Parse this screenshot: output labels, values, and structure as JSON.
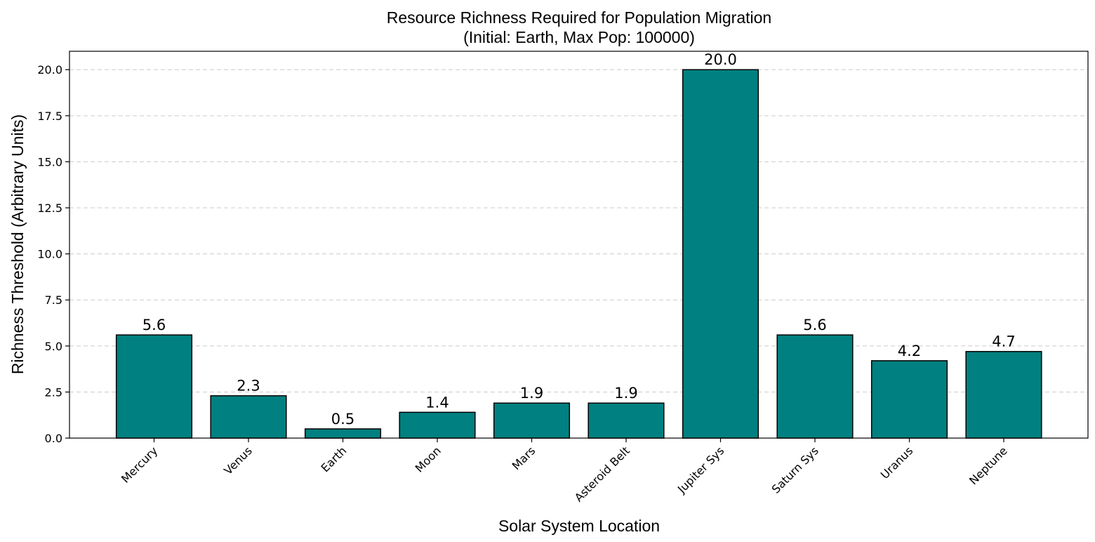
{
  "chart_data": {
    "type": "bar",
    "title": "Resource Richness Required for Population Migration",
    "subtitle": "(Initial: Earth, Max Pop: 100000)",
    "xlabel": "Solar System Location",
    "ylabel": "Richness Threshold (Arbitrary Units)",
    "categories": [
      "Mercury",
      "Venus",
      "Earth",
      "Moon",
      "Mars",
      "Asteroid Belt",
      "Jupiter Sys",
      "Saturn Sys",
      "Uranus",
      "Neptune"
    ],
    "values": [
      5.6,
      2.3,
      0.5,
      1.4,
      1.9,
      1.9,
      20.0,
      5.6,
      4.2,
      4.7
    ],
    "value_labels": [
      "5.6",
      "2.3",
      "0.5",
      "1.4",
      "1.9",
      "1.9",
      "20.0",
      "5.6",
      "4.2",
      "4.7"
    ],
    "ylim": [
      0,
      21
    ],
    "yticks": [
      0,
      2.5,
      5,
      7.5,
      10,
      12.5,
      15,
      17.5,
      20
    ],
    "ytick_labels": [
      "0.0",
      "2.5",
      "5.0",
      "7.5",
      "10.0",
      "12.5",
      "15.0",
      "17.5",
      "20.0"
    ],
    "grid": "y-axis dashed",
    "bar_color": "#008080",
    "bar_edge_color": "#000000",
    "grid_color": "#cccccc"
  }
}
